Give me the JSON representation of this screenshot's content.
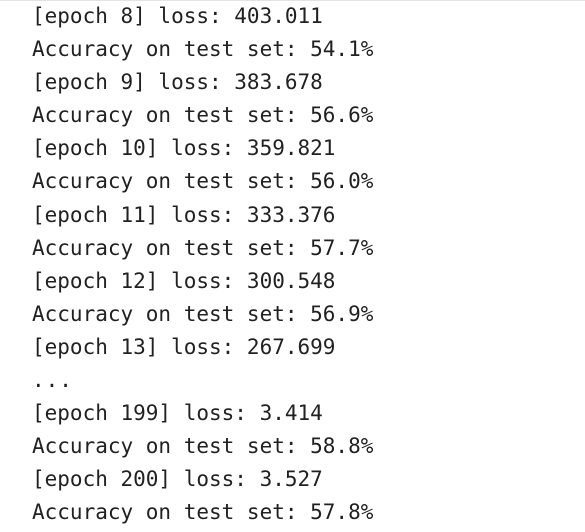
{
  "output": {
    "lines": [
      "[epoch 8] loss: 403.011",
      "Accuracy on test set: 54.1%",
      "[epoch 9] loss: 383.678",
      "Accuracy on test set: 56.6%",
      "[epoch 10] loss: 359.821",
      "Accuracy on test set: 56.0%",
      "[epoch 11] loss: 333.376",
      "Accuracy on test set: 57.7%",
      "[epoch 12] loss: 300.548",
      "Accuracy on test set: 56.9%",
      "[epoch 13] loss: 267.699",
      "...",
      "[epoch 199] loss: 3.414",
      "Accuracy on test set: 58.8%",
      "[epoch 200] loss: 3.527",
      "Accuracy on test set: 57.8%"
    ]
  }
}
